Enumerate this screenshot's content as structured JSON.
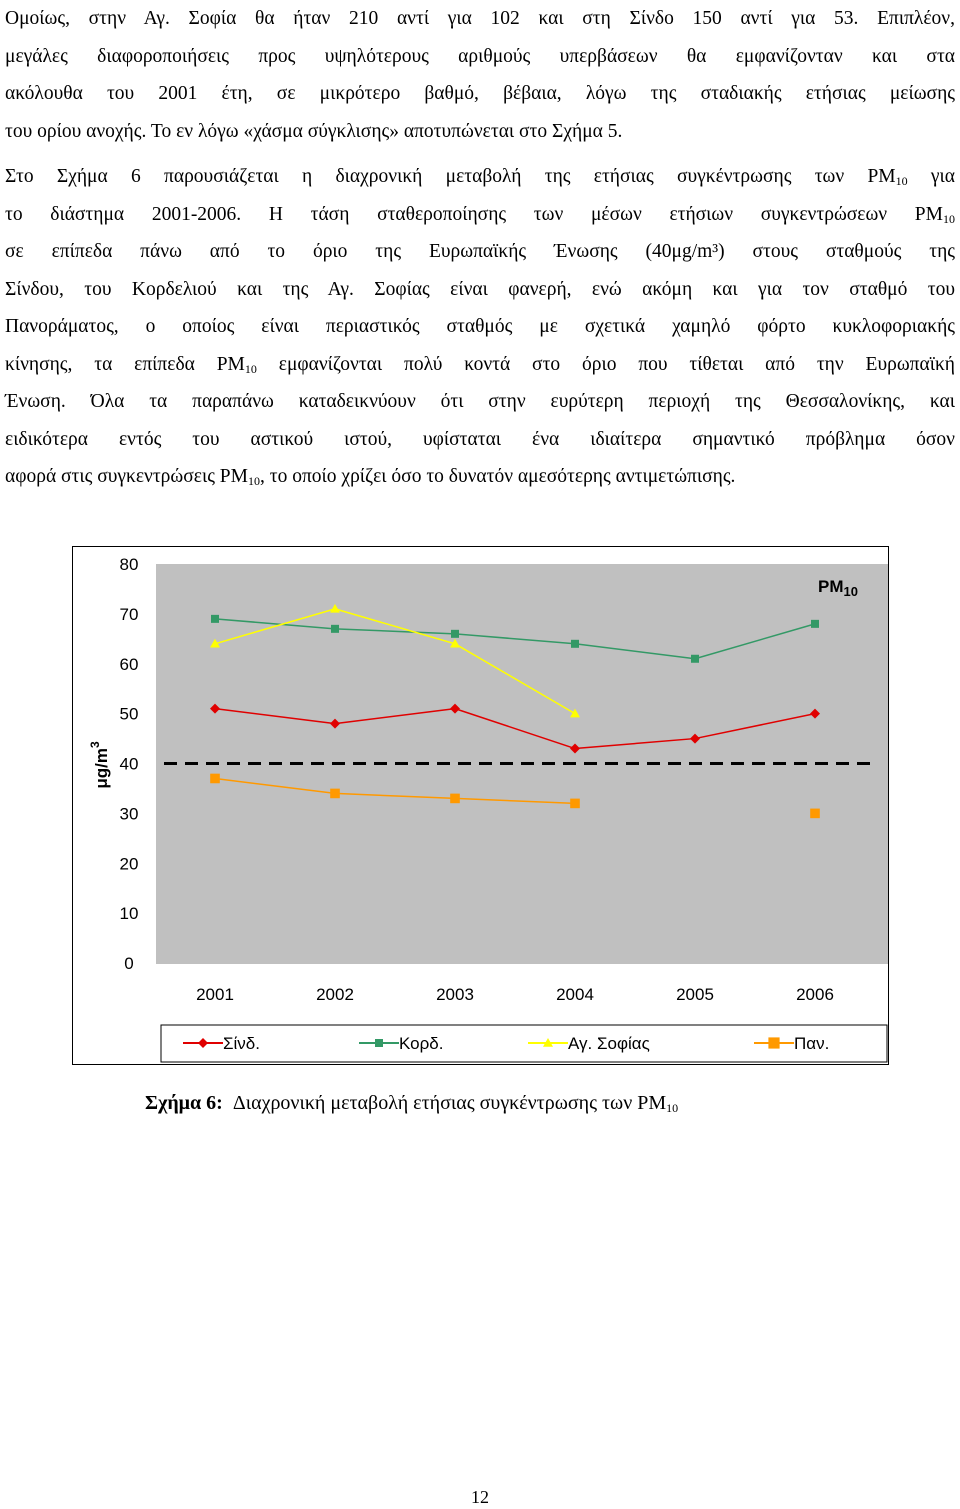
{
  "paragraph1": {
    "line1": "Ομοίως, στην Αγ. Σοφία θα ήταν 210 αντί για 102 και στη Σίνδο 150 αντί για 53. Επιπλέον,",
    "line2": "μεγάλες διαφοροποιήσεις προς υψηλότερους αριθμούς υπερβάσεων θα εμφανίζονταν και στα",
    "line3": "ακόλουθα του 2001 έτη, σε μικρότερο βαθμό, βέβαια, λόγω της σταδιακής ετήσιας μείωσης",
    "line4": "του ορίου ανοχής. Το εν λόγω «χάσμα σύγκλισης» αποτυπώνεται στο Σχήμα 5."
  },
  "paragraph2": {
    "l1a": "Στο Σχήμα 6 παρουσιάζεται η διαχρονική μεταβολή της ετήσιας συγκέντρωσης των PM",
    "l1b": "για",
    "l2a": "το διάστημα 2001-2006. Η τάση σταθεροποίησης των μέσων ετήσιων συγκεντρώσεων PM",
    "l3": "σε επίπεδα πάνω από το όριο της Ευρωπαϊκής Ένωσης (40μg/m³) στους σταθμούς της",
    "l4": "Σίνδου, του Κορδελιού και της Αγ. Σοφίας είναι φανερή, ενώ ακόμη και για τον σταθμό του",
    "l5": "Πανοράματος, ο οποίος είναι περιαστικός σταθμός με σχετικά χαμηλό φόρτο κυκλοφοριακής",
    "l6a": "κίνησης, τα επίπεδα PM",
    "l6b": "εμφανίζονται πολύ κοντά στο όριο που τίθεται από την Ευρωπαϊκή",
    "l7": "Ένωση. Όλα τα παραπάνω καταδεικνύουν ότι στην ευρύτερη περιοχή της Θεσσαλονίκης, και",
    "l8": "ειδικότερα εντός του αστικού ιστού, υφίσταται ένα ιδιαίτερα σημαντικό πρόβλημα όσον",
    "l9a": "αφορά στις συγκεντρώσεις PM",
    "l9b": ", το οποίο χρίζει όσο το δυνατόν αμεσότερης αντιμετώπισης.",
    "sub": "10"
  },
  "chart_data": {
    "type": "line",
    "title": "PM",
    "title_sub": "10",
    "ylabel": "μg/m",
    "ylabel_sup": "3",
    "ylim": [
      0,
      80
    ],
    "yticks": [
      "0",
      "10",
      "20",
      "30",
      "40",
      "50",
      "60",
      "70",
      "80"
    ],
    "categories": [
      "2001",
      "2002",
      "2003",
      "2004",
      "2005",
      "2006"
    ],
    "limit_line": 40,
    "grid": false,
    "plot_background": "#c0c0c0",
    "legend_position": "bottom",
    "series": [
      {
        "name": "Σίνδ.",
        "color": "#e00000",
        "marker": "diamond",
        "values": [
          51,
          48,
          51,
          43,
          45,
          50
        ]
      },
      {
        "name": "Κορδ.",
        "color": "#339966",
        "marker": "square",
        "values": [
          69,
          67,
          66,
          64,
          61,
          68
        ]
      },
      {
        "name": "Αγ. Σοφίας",
        "color": "#ffff00",
        "marker": "triangle",
        "values": [
          64,
          71,
          64,
          50,
          null,
          null
        ]
      },
      {
        "name": "Παν.",
        "color": "#ff9900",
        "marker": "square",
        "values": [
          37,
          34,
          33,
          32,
          null,
          30
        ]
      }
    ]
  },
  "caption": {
    "label": "Σχήμα 6:",
    "text": "Διαχρονική μεταβολή ετήσιας συγκέντρωσης των PM",
    "sub": "10"
  },
  "page_number": "12"
}
